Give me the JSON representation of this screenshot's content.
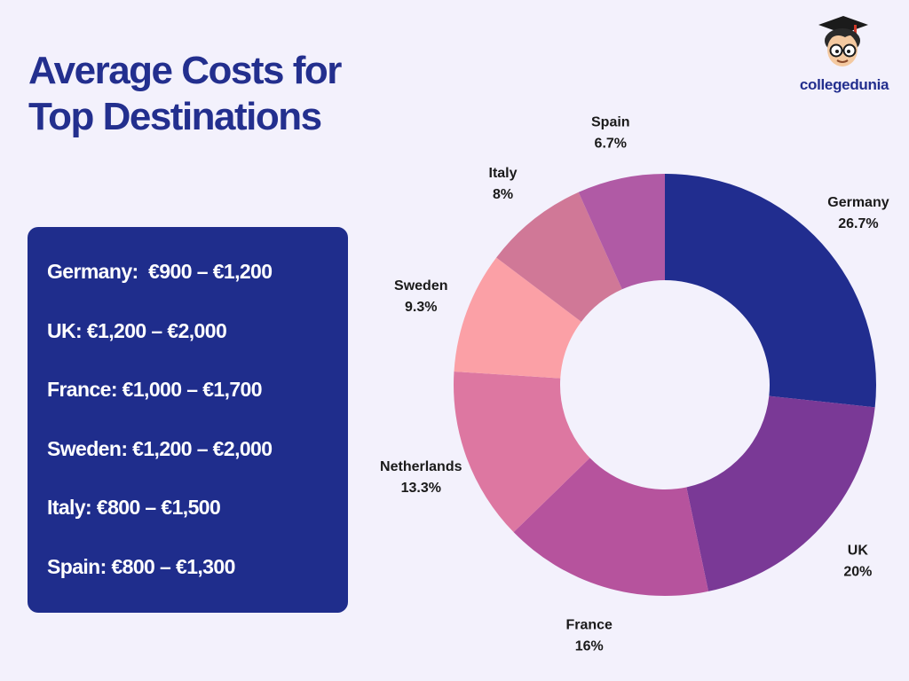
{
  "header": {
    "title_line1": "Average Costs for",
    "title_line2": "Top Destinations"
  },
  "brand": {
    "name": "collegedunia",
    "logo_icon": "graduate-mascot-icon"
  },
  "cost_ranges": [
    {
      "text": "Germany:  €900 – €1,200"
    },
    {
      "text": "UK: €1,200 – €2,000"
    },
    {
      "text": "France: €1,000 – €1,700"
    },
    {
      "text": "Sweden: €1,200 – €2,000"
    },
    {
      "text": "Italy: €800 – €1,500"
    },
    {
      "text": "Spain: €800 – €1,300"
    }
  ],
  "colors": {
    "background": "#f3f1fc",
    "accent": "#232f8e",
    "panel": "#1f2d8c"
  },
  "chart_data": {
    "type": "pie",
    "donut": true,
    "categories": [
      "Germany",
      "UK",
      "France",
      "Netherlands",
      "Sweden",
      "Italy",
      "Spain"
    ],
    "values": [
      26.7,
      20,
      16,
      13.3,
      9.3,
      8,
      6.7
    ],
    "labels": [
      "26.7%",
      "20%",
      "16%",
      "13.3%",
      "9.3%",
      "8%",
      "6.7%"
    ],
    "colors": [
      "#212d8f",
      "#7a3996",
      "#b6539d",
      "#dd77a1",
      "#fba0a6",
      "#d07897",
      "#b05aa5"
    ],
    "legend": "none"
  }
}
